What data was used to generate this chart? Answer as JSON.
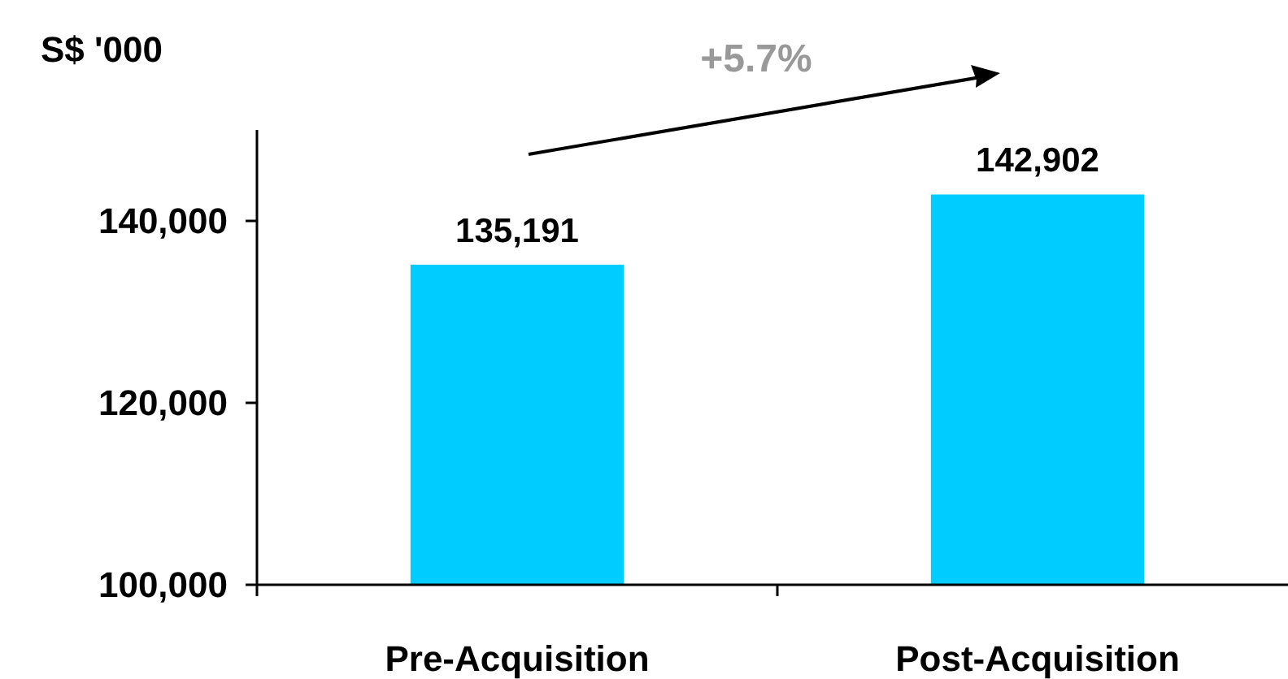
{
  "chart_data": {
    "type": "bar",
    "ylabel": "S$ '000",
    "categories": [
      "Pre-Acquisition",
      "Post-Acquisition"
    ],
    "values": [
      135191,
      142902
    ],
    "color": "#00ccff",
    "ylim": [
      100000,
      150000
    ],
    "yticks": [
      {
        "value": 100000,
        "label": "100,000"
      },
      {
        "value": 120000,
        "label": "120,000"
      },
      {
        "value": 140000,
        "label": "140,000"
      }
    ],
    "data_labels": true,
    "value_labels": [
      "135,191",
      "142,902"
    ],
    "annotations": [
      "+5.7%"
    ],
    "grid": false
  }
}
